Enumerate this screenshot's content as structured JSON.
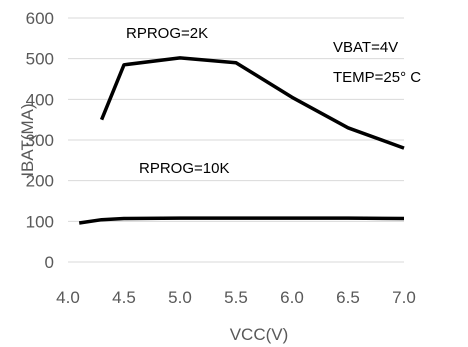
{
  "chart_data": {
    "type": "line",
    "xlabel": "VCC(V)",
    "ylabel": "IBAT(MA)",
    "xlim": [
      4.0,
      7.0
    ],
    "ylim": [
      0,
      600
    ],
    "x_ticks": [
      "4.0",
      "4.5",
      "5.0",
      "5.5",
      "6.0",
      "6.5",
      "7.0"
    ],
    "y_ticks": [
      "0",
      "100",
      "200",
      "300",
      "400",
      "500",
      "600"
    ],
    "grid": "horizontal",
    "series": [
      {
        "name": "RPROG=2K",
        "color": "#000000",
        "x": [
          4.3,
          4.5,
          5.0,
          5.5,
          6.0,
          6.5,
          7.0
        ],
        "y": [
          350,
          485,
          502,
          490,
          405,
          330,
          280
        ]
      },
      {
        "name": "RPROG=10K",
        "color": "#000000",
        "x": [
          4.1,
          4.3,
          4.5,
          5.0,
          5.5,
          6.0,
          6.5,
          7.0
        ],
        "y": [
          96,
          104,
          107,
          108,
          108,
          108,
          108,
          107
        ]
      }
    ],
    "annotations": [
      "VBAT=4V",
      "TEMP=25° C"
    ]
  }
}
